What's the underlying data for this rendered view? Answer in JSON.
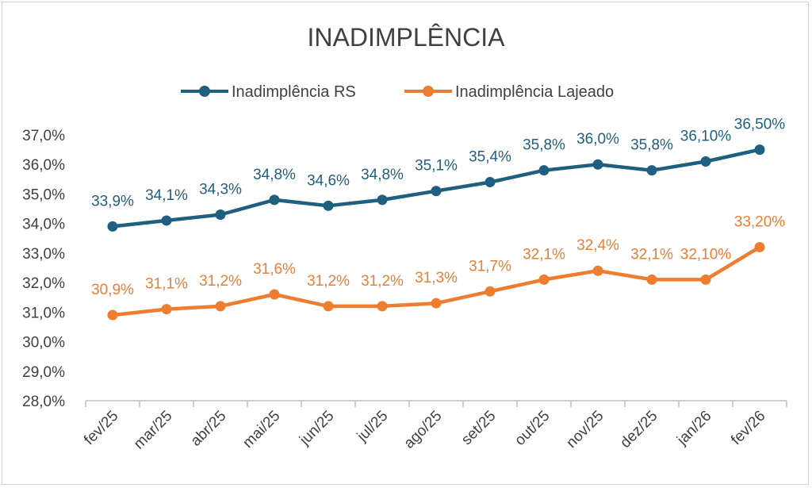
{
  "chart_data": {
    "type": "line",
    "title": "INADIMPLÊNCIA",
    "xlabel": "",
    "ylabel": "",
    "categories": [
      "fev/25",
      "mar/25",
      "abr/25",
      "mai/25",
      "jun/25",
      "jul/25",
      "ago/25",
      "set/25",
      "out/25",
      "nov/25",
      "dez/25",
      "jan/26",
      "fev/26"
    ],
    "ylim": [
      28.0,
      37.0
    ],
    "yticks": [
      "28,0%",
      "29,0%",
      "30,0%",
      "31,0%",
      "32,0%",
      "33,0%",
      "34,0%",
      "35,0%",
      "36,0%",
      "37,0%"
    ],
    "ytick_values": [
      28,
      29,
      30,
      31,
      32,
      33,
      34,
      35,
      36,
      37
    ],
    "grid": false,
    "legend_position": "top",
    "series": [
      {
        "name": "Inadimplência RS",
        "color": "#1f5f7f",
        "values": [
          33.9,
          34.1,
          34.3,
          34.8,
          34.6,
          34.8,
          35.1,
          35.4,
          35.8,
          36.0,
          35.8,
          36.1,
          36.5
        ],
        "labels": [
          "33,9%",
          "34,1%",
          "34,3%",
          "34,8%",
          "34,6%",
          "34,8%",
          "35,1%",
          "35,4%",
          "35,8%",
          "36,0%",
          "35,8%",
          "36,10%",
          "36,50%"
        ]
      },
      {
        "name": "Inadimplência Lajeado",
        "color": "#ed7d31",
        "values": [
          30.9,
          31.1,
          31.2,
          31.6,
          31.2,
          31.2,
          31.3,
          31.7,
          32.1,
          32.4,
          32.1,
          32.1,
          33.2
        ],
        "labels": [
          "30,9%",
          "31,1%",
          "31,2%",
          "31,6%",
          "31,2%",
          "31,2%",
          "31,3%",
          "31,7%",
          "32,1%",
          "32,4%",
          "32,1%",
          "32,10%",
          "33,20%"
        ]
      }
    ]
  }
}
